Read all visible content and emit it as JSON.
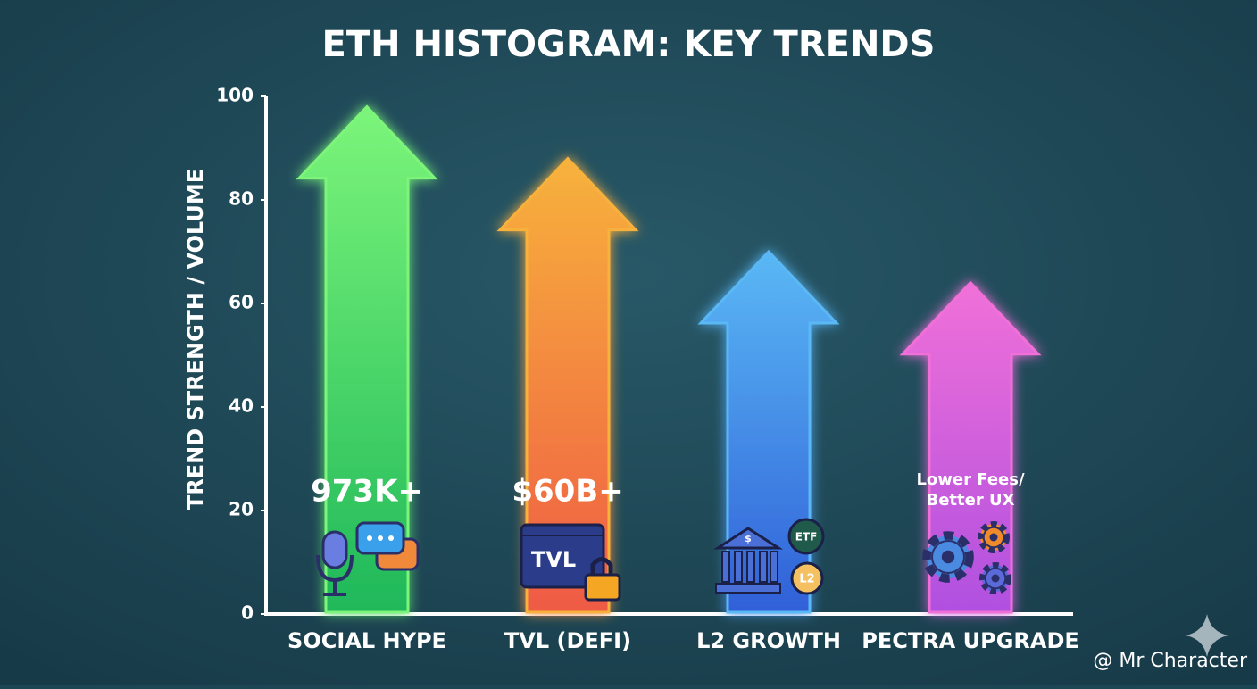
{
  "chart_data": {
    "type": "arrow-bar",
    "title": "ETH HISTOGRAM: KEY TRENDS",
    "y_label": "TREND STRENGTH / VOLUME",
    "categories": [
      "SOCIAL HYPE",
      "TVL (DEFI)",
      "L2 GROWTH",
      "PECTRA UPGRADE"
    ],
    "values": [
      98,
      88,
      70,
      64
    ],
    "colors": [
      [
        "#7cf57a",
        "#1fb85a"
      ],
      [
        "#f7b23c",
        "#ef5a45"
      ],
      [
        "#5ab8f5",
        "#3060d8"
      ],
      [
        "#f070d8",
        "#b050e0"
      ]
    ],
    "annotations": [
      [
        "973K+"
      ],
      [
        "$60B+"
      ],
      null,
      [
        "Lower Fees/",
        "Better UX"
      ]
    ],
    "icon_labels": [
      "TVL",
      "$",
      "ETF",
      "L2"
    ],
    "ylim": [
      0,
      100
    ],
    "yticks": [
      0,
      20,
      40,
      60,
      80,
      100
    ],
    "watermark": "@ Mr Character"
  }
}
